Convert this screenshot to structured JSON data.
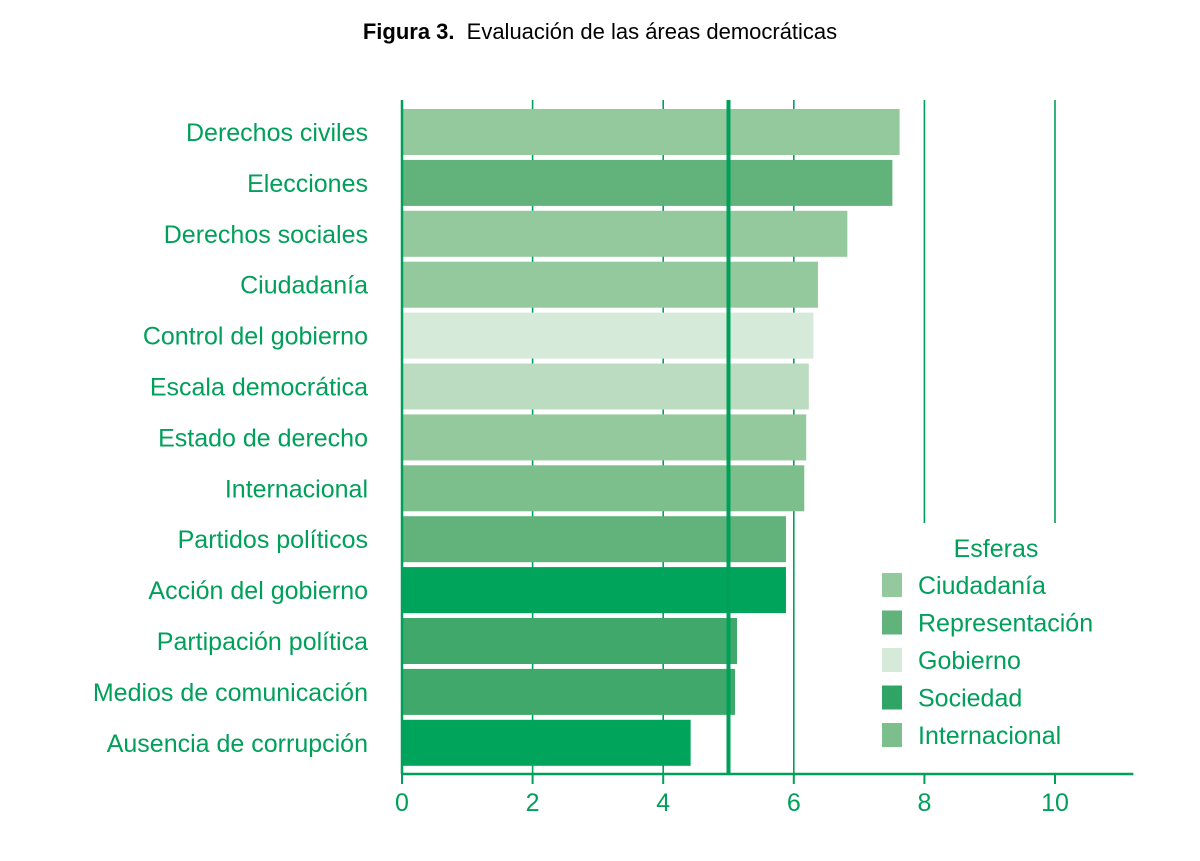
{
  "chart_data": {
    "type": "bar",
    "orientation": "horizontal",
    "title_prefix": "Figura 3.",
    "title": "Evaluación de las áreas democráticas",
    "xlim": [
      0,
      11.2
    ],
    "xticks": [
      0,
      2,
      4,
      6,
      8,
      10
    ],
    "reference_line": 5,
    "label_color": "#00a05a",
    "categories": [
      "Derechos civiles",
      "Elecciones",
      "Derechos sociales",
      "Ciudadanía",
      "Control del gobierno",
      "Escala democrática",
      "Estado de derecho",
      "Internacional",
      "Partidos políticos",
      "Acción del gobierno",
      "Partipación política",
      "Medios de comunicación",
      "Ausencia de corrupción"
    ],
    "values": [
      7.62,
      7.51,
      6.82,
      6.37,
      6.3,
      6.23,
      6.19,
      6.16,
      5.88,
      5.88,
      5.13,
      5.1,
      4.42
    ],
    "bar_colors": [
      "#94c89d",
      "#62b27c",
      "#94c89d",
      "#94c89d",
      "#d5ead8",
      "#bcdcc1",
      "#94c89d",
      "#7dbf8c",
      "#62b27c",
      "#00a45a",
      "#3fa86a",
      "#3fa86a",
      "#00a45a"
    ],
    "legend": {
      "title": "Esferas",
      "entries": [
        {
          "label": "Ciudadanía",
          "color": "#94c89d"
        },
        {
          "label": "Representación",
          "color": "#62b27c"
        },
        {
          "label": "Gobierno",
          "color": "#d5ead8"
        },
        {
          "label": "Sociedad",
          "color": "#2fa465"
        },
        {
          "label": "Internacional",
          "color": "#7dbf8c"
        }
      ]
    }
  }
}
